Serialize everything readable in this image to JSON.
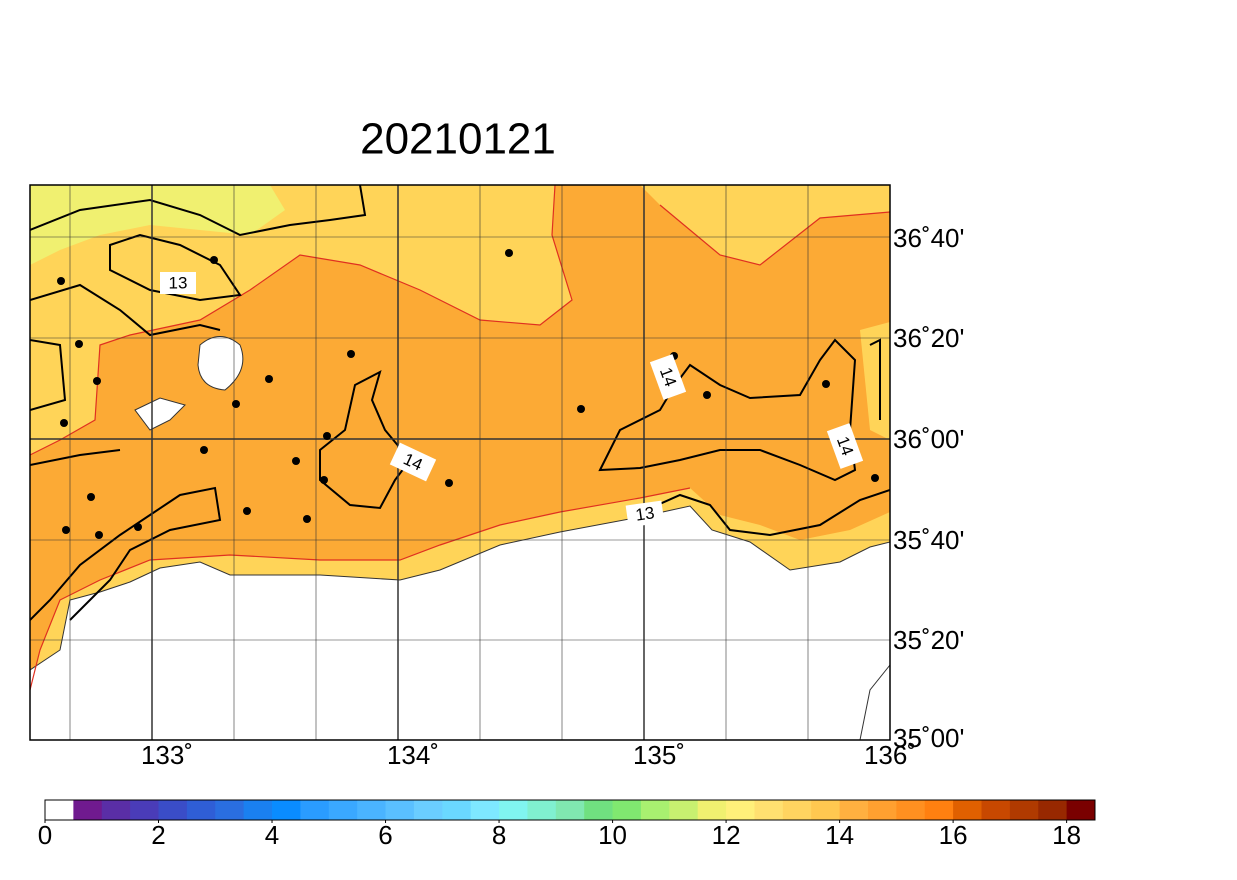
{
  "title": "20210121",
  "map": {
    "lon_labels": [
      "133˚",
      "134˚",
      "135˚",
      "136˚"
    ],
    "lat_labels": [
      "36˚40'",
      "36˚20'",
      "36˚00'",
      "35˚40'",
      "35˚20'",
      "35˚00'"
    ],
    "contour_labels": [
      "13",
      "13",
      "14",
      "14",
      "14"
    ]
  },
  "colorbar": {
    "lim": [
      0,
      18.5
    ],
    "ticks": [
      0,
      2,
      4,
      6,
      8,
      10,
      12,
      14,
      16,
      18
    ],
    "colors": [
      "#ffffff",
      "#701a8f",
      "#5a2ea6",
      "#4a3cb8",
      "#3a4dc8",
      "#2f5ed6",
      "#2a6ee0",
      "#1a80f0",
      "#0a8cff",
      "#2a9cff",
      "#3aa8ff",
      "#4ab4ff",
      "#5ac0ff",
      "#6acdff",
      "#6ad8ff",
      "#7ee8ff",
      "#80f5f0",
      "#80f0d0",
      "#80e8b0",
      "#70e080",
      "#80e870",
      "#a8f070",
      "#c8f070",
      "#f0f070",
      "#fff07a",
      "#ffe070",
      "#ffd460",
      "#ffc850",
      "#ffb040",
      "#ffa030",
      "#ff9020",
      "#ff8010",
      "#e06000",
      "#c84800",
      "#b03a00",
      "#982800",
      "#7a0000"
    ]
  }
}
